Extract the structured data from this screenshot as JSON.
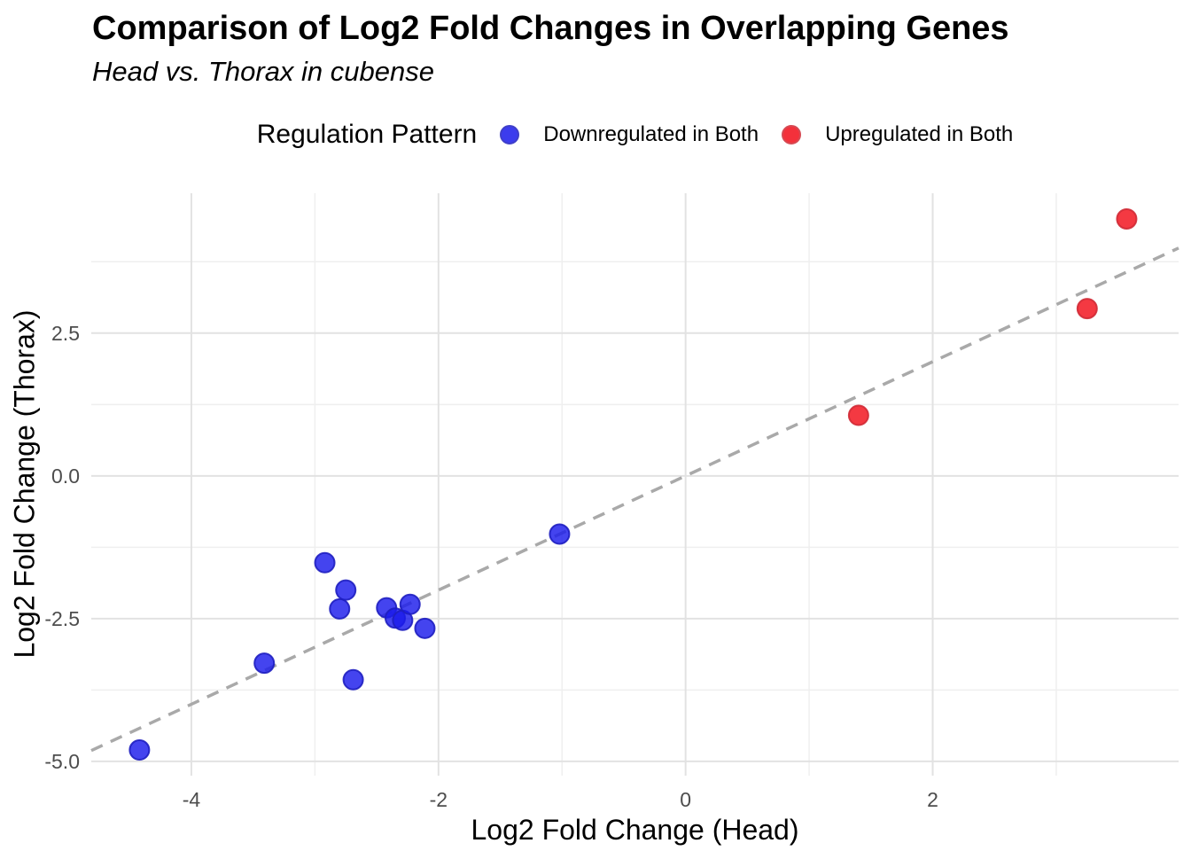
{
  "title": "Comparison of Log2 Fold Changes in Overlapping Genes",
  "subtitle": "Head vs. Thorax in cubense",
  "legend": {
    "title": "Regulation Pattern",
    "items": [
      {
        "label": "Downregulated in Both"
      },
      {
        "label": "Upregulated in Both"
      }
    ]
  },
  "chart_data": {
    "type": "scatter",
    "title": "Comparison of Log2 Fold Changes in Overlapping Genes",
    "subtitle": "Head vs. Thorax in cubense",
    "xlabel": "Log2 Fold Change (Head)",
    "ylabel": "Log2 Fold Change (Thorax)",
    "legend_title": "Regulation Pattern",
    "legend_position": "top-center",
    "grid": true,
    "background": "#FFFFFF",
    "major_grid_color": "#E2E2E2",
    "minor_grid_color": "#EFEFEF",
    "tick_label_color": "#4D4D4D",
    "xlim": [
      -4.81,
      3.99
    ],
    "ylim": [
      -5.25,
      4.95
    ],
    "xticks": [
      {
        "value": -4,
        "label": "-4"
      },
      {
        "value": -2,
        "label": "-2"
      },
      {
        "value": 0,
        "label": "0"
      },
      {
        "value": 2,
        "label": "2"
      }
    ],
    "yticks": [
      {
        "value": 2.5,
        "label": "2.5"
      },
      {
        "value": 0,
        "label": "0.0"
      },
      {
        "value": -2.5,
        "label": "-2.5"
      },
      {
        "value": -5,
        "label": "-5.0"
      }
    ],
    "x_minor_ticks": [
      -3,
      -1,
      1,
      3
    ],
    "y_minor_ticks": [
      3.75,
      1.25,
      -1.25,
      -3.75
    ],
    "reference_line": {
      "type": "identity y = x",
      "style": "dashed",
      "color": "#A9A9A9"
    },
    "series": [
      {
        "name": "Downregulated in Both",
        "color": "#1B1BEB",
        "edge_color": "#1E1EC0",
        "points": [
          [
            -4.42,
            -4.8
          ],
          [
            -3.41,
            -3.28
          ],
          [
            -2.92,
            -1.52
          ],
          [
            -2.8,
            -2.33
          ],
          [
            -2.75,
            -2.0
          ],
          [
            -2.69,
            -3.57
          ],
          [
            -2.42,
            -2.31
          ],
          [
            -2.35,
            -2.49
          ],
          [
            -2.29,
            -2.53
          ],
          [
            -2.23,
            -2.25
          ],
          [
            -2.11,
            -2.67
          ],
          [
            -1.02,
            -1.02
          ]
        ]
      },
      {
        "name": "Upregulated in Both",
        "color": "#F20E19",
        "edge_color": "#D02A35",
        "points": [
          [
            1.4,
            1.06
          ],
          [
            3.25,
            2.93
          ],
          [
            3.57,
            4.5
          ]
        ]
      }
    ]
  }
}
